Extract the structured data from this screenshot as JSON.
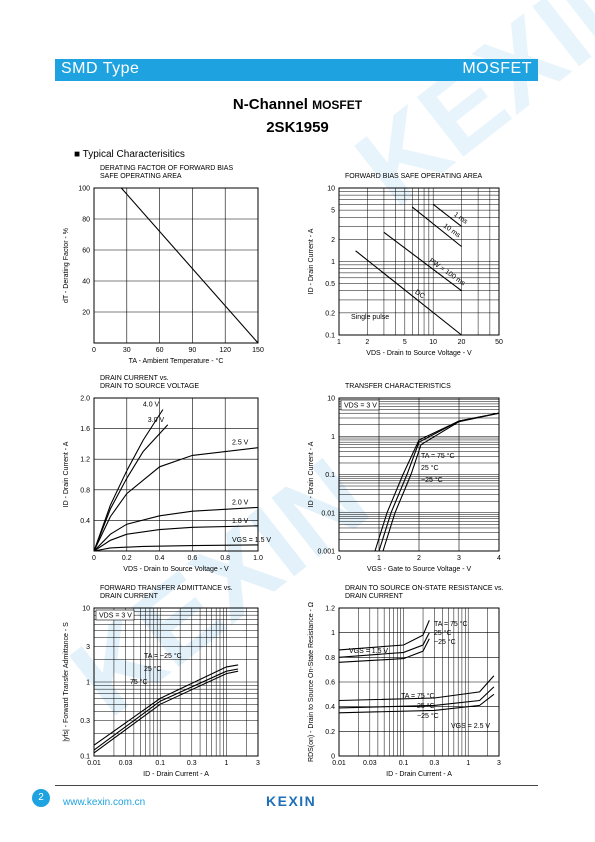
{
  "header": {
    "left": "SMD Type",
    "right": "MOSFET"
  },
  "title": {
    "main": "N-Channel",
    "sub": "MOSFET",
    "part": "2SK1959"
  },
  "section": {
    "bullet": "■",
    "label": "Typical  Characterisitics"
  },
  "footer": {
    "page": "2",
    "url": "www.kexin.com.cn",
    "logo": "KEXIN"
  },
  "colors": {
    "accent": "#1ea3e0",
    "logo": "#1e6fb8"
  },
  "chart_data": [
    {
      "id": "derating",
      "type": "line",
      "title": [
        "DERATING FACTOR OF FORWARD BIAS",
        "SAFE OPERATING AREA"
      ],
      "xlabel": "TA - Ambient Temperature - °C",
      "ylabel": "dT - Derating Factor - %",
      "xlim": [
        0,
        150
      ],
      "ylim": [
        0,
        100
      ],
      "xticks": [
        "0",
        "30",
        "60",
        "90",
        "120",
        "150"
      ],
      "yticks": [
        "20",
        "40",
        "60",
        "80",
        "100"
      ],
      "series": [
        {
          "x": [
            25,
            150
          ],
          "y": [
            100,
            0
          ]
        }
      ]
    },
    {
      "id": "fbsoa",
      "type": "line",
      "scale": "log-log",
      "title": [
        "FORWARD BIAS SAFE OPERATING AREA"
      ],
      "xlabel": "VDS - Drain to Source Voltage - V",
      "ylabel": "ID - Drain Current - A",
      "xlim": [
        1,
        50
      ],
      "ylim": [
        0.1,
        10
      ],
      "xticks": [
        "1",
        "2",
        "5",
        "10",
        "20",
        "50"
      ],
      "yticks": [
        "0.1",
        "0.2",
        "0.5",
        "1",
        "2",
        "5",
        "10"
      ],
      "series": [
        {
          "name": "1 ms",
          "x": [
            10,
            20
          ],
          "y": [
            6,
            3
          ]
        },
        {
          "name": "10 ms",
          "x": [
            6,
            20
          ],
          "y": [
            5.5,
            1.6
          ]
        },
        {
          "name": "PW = 100 ms",
          "x": [
            3,
            20
          ],
          "y": [
            2.5,
            0.4
          ]
        },
        {
          "name": "DC",
          "x": [
            1.5,
            20
          ],
          "y": [
            1.4,
            0.1
          ]
        }
      ],
      "annotation": "Single pulse"
    },
    {
      "id": "output",
      "type": "line",
      "title": [
        "DRAIN CURRENT vs.",
        "DRAIN TO SOURCE VOLTAGE"
      ],
      "xlabel": "VDS - Drain to Source Voltage - V",
      "ylabel": "ID - Drain Current - A",
      "xlim": [
        0,
        1.0
      ],
      "ylim": [
        0,
        2.0
      ],
      "xticks": [
        "0",
        "0.2",
        "0.4",
        "0.6",
        "0.8",
        "1.0"
      ],
      "yticks": [
        "0.4",
        "0.8",
        "1.2",
        "1.6",
        "2.0"
      ],
      "series": [
        {
          "name": "4.0 V",
          "x": [
            0,
            0.1,
            0.2,
            0.3,
            0.42
          ],
          "y": [
            0,
            0.6,
            1.05,
            1.45,
            1.85
          ]
        },
        {
          "name": "3.0 V",
          "x": [
            0,
            0.1,
            0.2,
            0.3,
            0.45
          ],
          "y": [
            0,
            0.55,
            0.95,
            1.3,
            1.65
          ]
        },
        {
          "name": "2.5 V",
          "x": [
            0,
            0.1,
            0.2,
            0.4,
            0.6,
            1.0
          ],
          "y": [
            0,
            0.45,
            0.75,
            1.1,
            1.25,
            1.35
          ]
        },
        {
          "name": "2.0 V",
          "x": [
            0,
            0.1,
            0.2,
            0.4,
            0.6,
            1.0
          ],
          "y": [
            0,
            0.22,
            0.35,
            0.46,
            0.52,
            0.57
          ]
        },
        {
          "name": "1.8 V",
          "x": [
            0,
            0.1,
            0.2,
            0.4,
            0.6,
            1.0
          ],
          "y": [
            0,
            0.14,
            0.22,
            0.28,
            0.31,
            0.33
          ]
        },
        {
          "name": "VGS = 1.5 V",
          "x": [
            0,
            0.1,
            0.3,
            0.6,
            1.0
          ],
          "y": [
            0,
            0.04,
            0.06,
            0.07,
            0.08
          ]
        }
      ]
    },
    {
      "id": "transfer",
      "type": "line",
      "scale": "log-y",
      "title": [
        "TRANSFER CHARACTERISTICS"
      ],
      "xlabel": "VGS - Gate to Source Voltage - V",
      "ylabel": "ID - Drain Current - A",
      "xlim": [
        0,
        4
      ],
      "ylim": [
        0.001,
        10
      ],
      "xticks": [
        "0",
        "1",
        "2",
        "3",
        "4"
      ],
      "yticks": [
        "0.001",
        "0.01",
        "0.1",
        "1",
        "10"
      ],
      "series": [
        {
          "name": "TA = 75 °C",
          "x": [
            0.9,
            1.2,
            1.6,
            2.0,
            3.0,
            4.0
          ],
          "y": [
            0.001,
            0.01,
            0.1,
            0.8,
            2.5,
            4
          ]
        },
        {
          "name": "25 °C",
          "x": [
            1.0,
            1.3,
            1.7,
            2.0,
            3.0,
            4.0
          ],
          "y": [
            0.001,
            0.01,
            0.1,
            0.7,
            2.5,
            4
          ]
        },
        {
          "name": "−25 °C",
          "x": [
            1.1,
            1.4,
            1.8,
            2.05,
            3.0,
            4.0
          ],
          "y": [
            0.001,
            0.01,
            0.1,
            0.6,
            2.4,
            4
          ]
        }
      ],
      "legend": "VDS = 3 V"
    },
    {
      "id": "yfs",
      "type": "line",
      "scale": "log-log",
      "title": [
        "FORWARD TRANSFER ADMITTANCE vs.",
        "DRAIN CURRENT"
      ],
      "xlabel": "ID - Drain Current - A",
      "ylabel": "|yfs| - Forward Transfer Admittance - S",
      "xlim": [
        0.01,
        3
      ],
      "ylim": [
        0.1,
        10
      ],
      "xticks": [
        "0.01",
        "0.03",
        "0.1",
        "0.3",
        "1",
        "3"
      ],
      "yticks": [
        "0.1",
        "0.3",
        "1",
        "3",
        "10"
      ],
      "series": [
        {
          "name": "TA = −25 °C",
          "x": [
            0.01,
            0.1,
            1,
            1.5
          ],
          "y": [
            0.14,
            0.6,
            1.6,
            1.7
          ]
        },
        {
          "name": "25 °C",
          "x": [
            0.01,
            0.1,
            1,
            1.5
          ],
          "y": [
            0.12,
            0.55,
            1.4,
            1.5
          ]
        },
        {
          "name": "75 °C",
          "x": [
            0.01,
            0.1,
            1,
            1.5
          ],
          "y": [
            0.11,
            0.5,
            1.3,
            1.4
          ]
        }
      ],
      "legend": "VDS = 3 V"
    },
    {
      "id": "rdson",
      "type": "line",
      "scale": "log-x",
      "title": [
        "DRAIN TO SOURCE ON-STATE RESISTANCE vs.",
        "DRAIN CURRENT"
      ],
      "xlabel": "ID - Drain Current - A",
      "ylabel": "RDS(on) - Drain to Source On-State Resistance - Ω",
      "xlim": [
        0.01,
        3
      ],
      "ylim": [
        0,
        1.2
      ],
      "xticks": [
        "0.01",
        "0.03",
        "0.1",
        "0.3",
        "1",
        "3"
      ],
      "yticks": [
        "0",
        "0.2",
        "0.4",
        "0.6",
        "0.8",
        "1",
        "1.2"
      ],
      "series": [
        {
          "name": "VGS = 1.5 V, TA = 75 °C",
          "x": [
            0.01,
            0.1,
            0.2,
            0.25
          ],
          "y": [
            0.86,
            0.9,
            0.98,
            1.1
          ]
        },
        {
          "name": "VGS = 1.5 V, 25 °C",
          "x": [
            0.01,
            0.1,
            0.2,
            0.25
          ],
          "y": [
            0.8,
            0.84,
            0.9,
            1.0
          ]
        },
        {
          "name": "VGS = 1.5 V, −25 °C",
          "x": [
            0.01,
            0.1,
            0.2,
            0.25
          ],
          "y": [
            0.76,
            0.79,
            0.85,
            0.95
          ]
        },
        {
          "name": "VGS = 2.5 V, TA = 75 °C",
          "x": [
            0.01,
            0.3,
            1.5,
            2.5
          ],
          "y": [
            0.45,
            0.47,
            0.52,
            0.65
          ]
        },
        {
          "name": "VGS = 2.5 V, 25 °C",
          "x": [
            0.01,
            0.3,
            1.5,
            2.5
          ],
          "y": [
            0.39,
            0.41,
            0.45,
            0.56
          ]
        },
        {
          "name": "VGS = 2.5 V, −25 °C",
          "x": [
            0.01,
            0.3,
            1.5,
            2.5
          ],
          "y": [
            0.35,
            0.37,
            0.41,
            0.5
          ]
        }
      ],
      "labels": [
        "VGS = 1.5 V",
        "TA = 75 °C",
        "25 °C",
        "−25 °C",
        "TA = 75 °C",
        "25 °C",
        "−25 °C",
        "VGS = 2.5 V"
      ]
    }
  ]
}
